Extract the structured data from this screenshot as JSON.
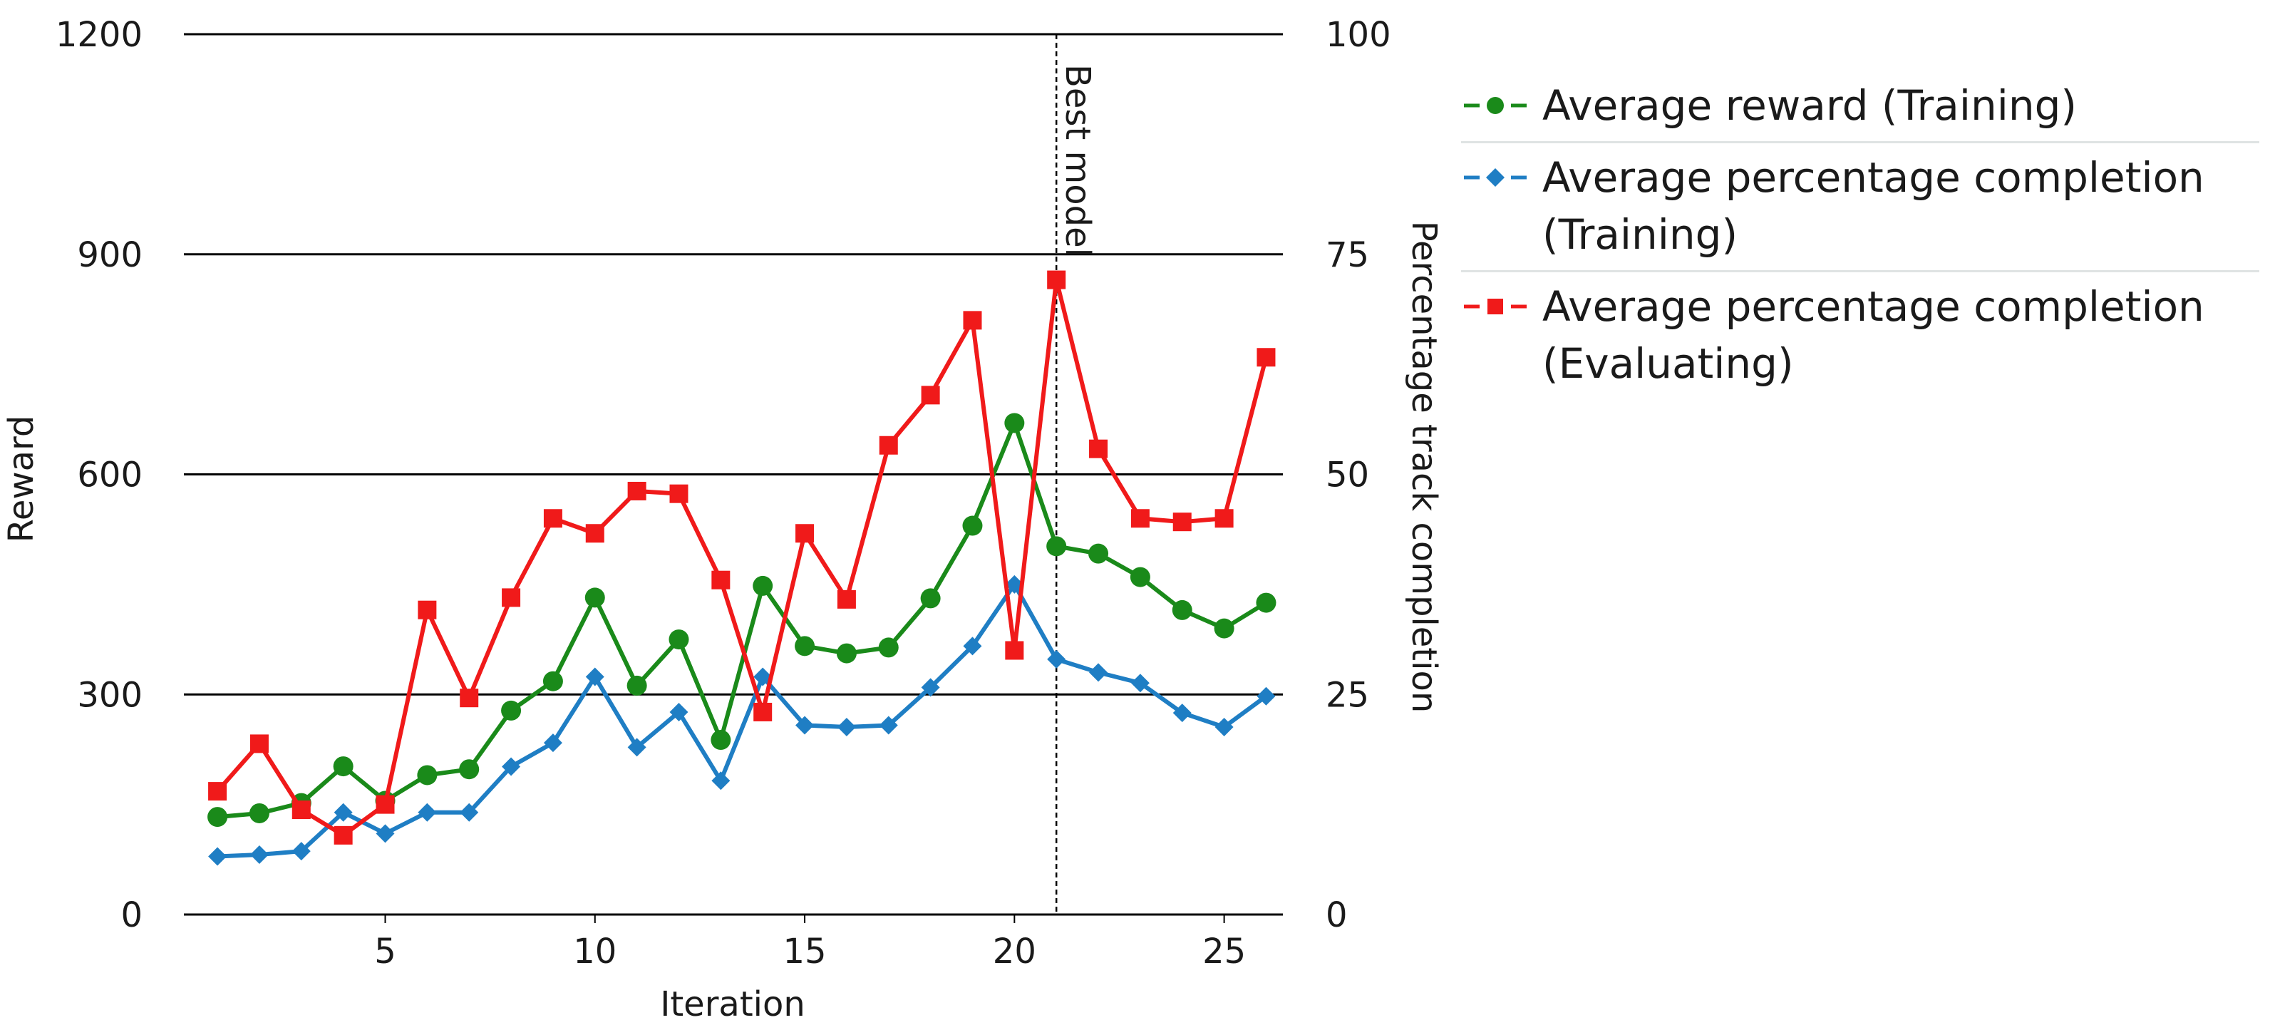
{
  "chart_data": {
    "type": "line",
    "x": [
      1,
      2,
      3,
      4,
      5,
      6,
      7,
      8,
      9,
      10,
      11,
      12,
      13,
      14,
      15,
      16,
      17,
      18,
      19,
      20,
      21,
      22,
      23,
      24,
      25,
      26
    ],
    "xlabel": "Iteration",
    "ylabel": "Reward",
    "y2label": "Percentage track completion",
    "xlim": [
      0.2,
      26.4
    ],
    "ylim": [
      0,
      1200
    ],
    "y2lim": [
      0,
      100
    ],
    "x_ticks": [
      5,
      10,
      15,
      20,
      25
    ],
    "y_ticks": [
      0,
      300,
      600,
      900,
      1200
    ],
    "y2_ticks": [
      0,
      25,
      50,
      75,
      100
    ],
    "grid": true,
    "legend_position": "right",
    "annotation": {
      "x": 21,
      "label": "Best model"
    },
    "series": [
      {
        "name": "Average reward (Training)",
        "axis": "left",
        "color": "#1a8a1a",
        "marker": "circle",
        "values": [
          133,
          138,
          152,
          202,
          155,
          190,
          198,
          278,
          318,
          432,
          312,
          375,
          238,
          448,
          366,
          356,
          364,
          431,
          530,
          670,
          502,
          492,
          460,
          415,
          390,
          425
        ]
      },
      {
        "name": "Average percentage completion (Training)",
        "axis": "right",
        "color": "#1f7ec4",
        "marker": "diamond",
        "values": [
          6.6,
          6.8,
          7.2,
          11.6,
          9.2,
          11.6,
          11.6,
          16.8,
          19.5,
          27.0,
          19.0,
          23.0,
          15.2,
          27.0,
          21.5,
          21.3,
          21.5,
          25.8,
          30.5,
          37.5,
          29.0,
          27.5,
          26.3,
          22.9,
          21.3,
          24.8
        ]
      },
      {
        "name": "Average percentage completion (Evaluating)",
        "axis": "right",
        "color": "#f01a1a",
        "marker": "square",
        "values": [
          14.0,
          19.4,
          11.9,
          9.0,
          12.5,
          34.6,
          24.6,
          36.0,
          45.0,
          43.3,
          48.1,
          47.8,
          38.0,
          23.0,
          43.3,
          35.8,
          53.3,
          59.0,
          67.5,
          30.0,
          72.1,
          52.9,
          45.0,
          44.6,
          45.0,
          63.3
        ]
      }
    ]
  }
}
